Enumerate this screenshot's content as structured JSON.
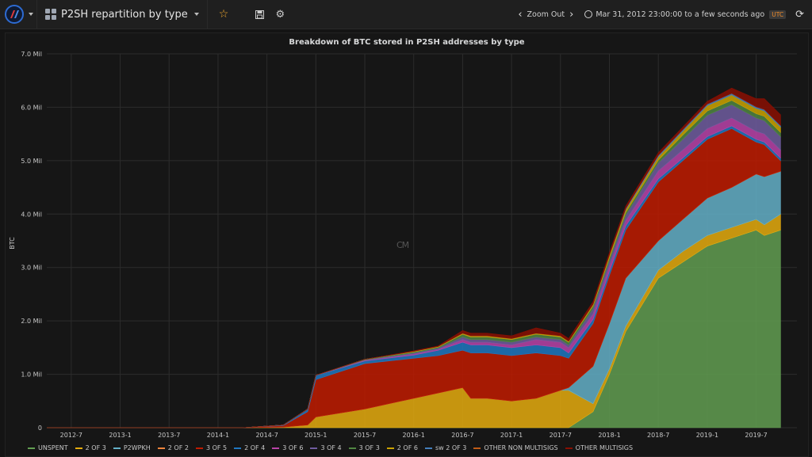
{
  "topbar": {
    "title": "P2SH repartition by type",
    "zoom_out": "Zoom Out",
    "time_range": "Mar 31, 2012 23:00:00 to a few seconds ago",
    "timezone": "UTC"
  },
  "panel": {
    "watermark": "CM"
  },
  "chart_data": {
    "type": "area",
    "stacked": true,
    "title": "Breakdown of BTC stored in P2SH addresses by type",
    "ylabel": "BTC",
    "ylim": [
      0,
      7.0
    ],
    "y_ticks": [
      "0",
      "1.0 Mil",
      "2.0 Mil",
      "3.0 Mil",
      "4.0 Mil",
      "5.0 Mil",
      "6.0 Mil",
      "7.0 Mil"
    ],
    "x_ticks": [
      "2012-7",
      "2013-1",
      "2013-7",
      "2014-1",
      "2014-7",
      "2015-1",
      "2015-7",
      "2016-1",
      "2016-7",
      "2017-1",
      "2017-7",
      "2018-1",
      "2018-7",
      "2019-1",
      "2019-7"
    ],
    "grid": true,
    "legend_position": "bottom",
    "x": [
      "2012-04",
      "2014-04",
      "2014-09",
      "2014-12",
      "2015-01",
      "2015-07",
      "2016-01",
      "2016-04",
      "2016-07",
      "2016-08",
      "2016-10",
      "2017-01",
      "2017-04",
      "2017-07",
      "2017-08",
      "2017-11",
      "2018-01",
      "2018-03",
      "2018-07",
      "2018-10",
      "2019-01",
      "2019-04",
      "2019-07",
      "2019-08",
      "2019-10"
    ],
    "series": [
      {
        "name": "UNSPENT",
        "color": "#629e51",
        "values": [
          0,
          0,
          0,
          0,
          0,
          0,
          0,
          0,
          0,
          0,
          0,
          0,
          0,
          0,
          0,
          0.3,
          1.0,
          1.8,
          2.8,
          3.1,
          3.4,
          3.55,
          3.7,
          3.6,
          3.7
        ]
      },
      {
        "name": "2 OF 3",
        "color": "#e5ac0e",
        "values": [
          0,
          0,
          0.01,
          0.05,
          0.2,
          0.35,
          0.55,
          0.65,
          0.75,
          0.55,
          0.55,
          0.5,
          0.55,
          0.7,
          0.7,
          0.15,
          0.1,
          0.1,
          0.15,
          0.2,
          0.2,
          0.2,
          0.2,
          0.2,
          0.3
        ]
      },
      {
        "name": "P2WPKH",
        "color": "#64b0c8",
        "values": [
          0,
          0,
          0,
          0,
          0,
          0,
          0,
          0,
          0,
          0,
          0,
          0,
          0,
          0,
          0.05,
          0.7,
          0.85,
          0.9,
          0.55,
          0.6,
          0.7,
          0.75,
          0.85,
          0.9,
          0.8
        ]
      },
      {
        "name": "2 OF 2",
        "color": "#ef843c",
        "values": [
          0,
          0,
          0,
          0,
          0,
          0,
          0,
          0,
          0,
          0,
          0,
          0,
          0,
          0,
          0,
          0,
          0,
          0,
          0,
          0,
          0,
          0,
          0,
          0,
          0
        ]
      },
      {
        "name": "3 OF 5",
        "color": "#bf1b00",
        "values": [
          0,
          0,
          0.03,
          0.25,
          0.7,
          0.85,
          0.75,
          0.7,
          0.7,
          0.85,
          0.85,
          0.85,
          0.85,
          0.65,
          0.55,
          0.8,
          0.9,
          0.9,
          1.1,
          1.1,
          1.1,
          1.1,
          0.6,
          0.6,
          0.2
        ]
      },
      {
        "name": "2 OF 4",
        "color": "#1f78c1",
        "values": [
          0,
          0,
          0.01,
          0.05,
          0.08,
          0.05,
          0.06,
          0.1,
          0.15,
          0.15,
          0.15,
          0.15,
          0.15,
          0.15,
          0.1,
          0.08,
          0.08,
          0.08,
          0.06,
          0.05,
          0.05,
          0.05,
          0.05,
          0.05,
          0.05
        ]
      },
      {
        "name": "3 OF 6",
        "color": "#ba43a9",
        "values": [
          0,
          0,
          0,
          0,
          0,
          0.01,
          0.02,
          0.02,
          0.05,
          0.05,
          0.05,
          0.05,
          0.1,
          0.1,
          0.1,
          0.1,
          0.1,
          0.1,
          0.15,
          0.15,
          0.15,
          0.15,
          0.15,
          0.15,
          0.15
        ]
      },
      {
        "name": "3 OF 4",
        "color": "#705da0",
        "values": [
          0,
          0,
          0,
          0,
          0,
          0.01,
          0.02,
          0.02,
          0.05,
          0.05,
          0.05,
          0.05,
          0.05,
          0.05,
          0.05,
          0.1,
          0.1,
          0.1,
          0.15,
          0.2,
          0.25,
          0.25,
          0.25,
          0.25,
          0.25
        ]
      },
      {
        "name": "3 OF 3",
        "color": "#508642",
        "values": [
          0,
          0,
          0,
          0,
          0,
          0.01,
          0.02,
          0.02,
          0.05,
          0.05,
          0.05,
          0.05,
          0.05,
          0.05,
          0.05,
          0.05,
          0.05,
          0.05,
          0.05,
          0.08,
          0.08,
          0.08,
          0.08,
          0.08,
          0.08
        ]
      },
      {
        "name": "2 OF 6",
        "color": "#cca300",
        "values": [
          0,
          0,
          0,
          0,
          0,
          0,
          0.01,
          0.01,
          0.02,
          0.02,
          0.02,
          0.02,
          0.02,
          0.02,
          0.02,
          0.03,
          0.05,
          0.05,
          0.06,
          0.07,
          0.1,
          0.1,
          0.1,
          0.1,
          0.1
        ]
      },
      {
        "name": "sw 2 OF 3",
        "color": "#447ebc",
        "values": [
          0,
          0,
          0,
          0,
          0,
          0,
          0,
          0,
          0,
          0,
          0,
          0,
          0,
          0,
          0,
          0,
          0,
          0.02,
          0.03,
          0.03,
          0.03,
          0.03,
          0.03,
          0.03,
          0.03
        ]
      },
      {
        "name": "OTHER NON MULTISIGS",
        "color": "#c15c17",
        "values": [
          0,
          0,
          0,
          0,
          0,
          0,
          0,
          0,
          0,
          0,
          0,
          0,
          0,
          0,
          0,
          0,
          0,
          0,
          0,
          0,
          0,
          0,
          0,
          0,
          0
        ]
      },
      {
        "name": "OTHER MULTISIGS",
        "color": "#890f02",
        "values": [
          0,
          0,
          0,
          0,
          0,
          0,
          0.01,
          0.01,
          0.05,
          0.05,
          0.05,
          0.05,
          0.1,
          0.05,
          0.05,
          0.05,
          0.05,
          0.05,
          0.05,
          0.05,
          0.05,
          0.1,
          0.15,
          0.2,
          0.2
        ]
      }
    ]
  }
}
